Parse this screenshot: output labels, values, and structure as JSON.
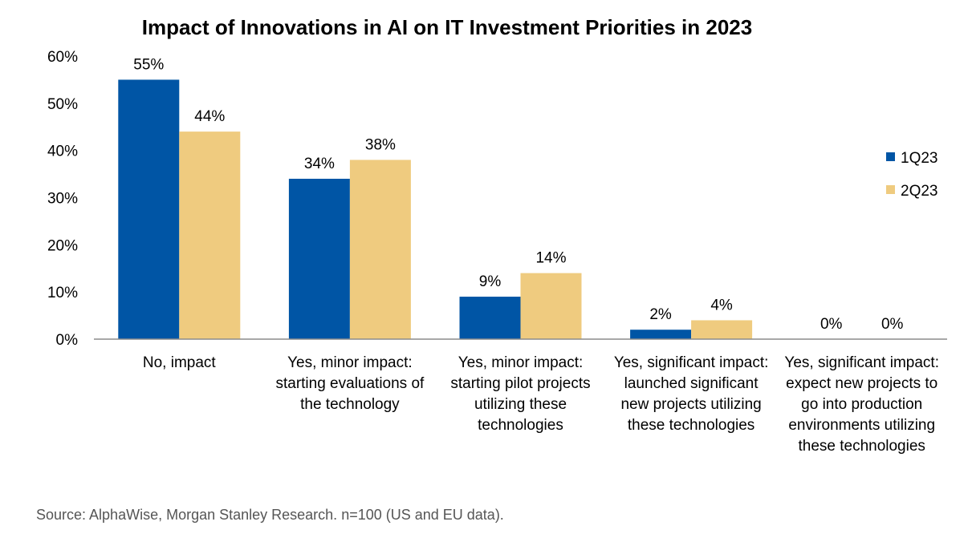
{
  "source": "Source: AlphaWise, Morgan Stanley Research. n=100 (US and EU data).",
  "chart_data": {
    "type": "bar",
    "title": "Impact of Innovations in AI on IT Investment Priorities in 2023",
    "xlabel": "",
    "ylabel": "",
    "ylim": [
      0,
      60
    ],
    "yticks": [
      0,
      10,
      20,
      30,
      40,
      50,
      60
    ],
    "ytick_labels": [
      "0%",
      "10%",
      "20%",
      "30%",
      "40%",
      "50%",
      "60%"
    ],
    "grid": false,
    "legend_position": "right",
    "categories": [
      [
        "No, impact"
      ],
      [
        "Yes, minor impact:",
        "starting evaluations of",
        "the technology"
      ],
      [
        "Yes, minor impact:",
        "starting pilot projects",
        "utilizing these",
        "technologies"
      ],
      [
        "Yes, significant impact:",
        "launched significant",
        "new projects utilizing",
        "these technologies"
      ],
      [
        "Yes, significant impact:",
        "expect new projects to",
        "go into production",
        "environments utilizing",
        "these technologies"
      ]
    ],
    "series": [
      {
        "name": "1Q23",
        "color": "#0055a5",
        "values": [
          55,
          34,
          9,
          2,
          0
        ],
        "labels": [
          "55%",
          "34%",
          "9%",
          "2%",
          "0%"
        ]
      },
      {
        "name": "2Q23",
        "color": "#efcb7f",
        "values": [
          44,
          38,
          14,
          4,
          0
        ],
        "labels": [
          "44%",
          "38%",
          "14%",
          "4%",
          "0%"
        ]
      }
    ]
  }
}
